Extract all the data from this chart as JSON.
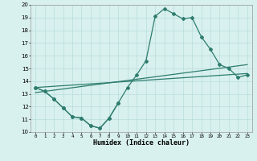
{
  "line1_x": [
    0,
    1,
    2,
    3,
    4,
    5,
    6,
    7,
    8,
    9,
    10,
    11,
    12,
    13,
    14,
    15,
    16,
    17,
    18,
    19,
    20,
    21,
    22,
    23
  ],
  "line1_y": [
    13.5,
    13.2,
    12.6,
    11.9,
    11.2,
    11.1,
    10.5,
    10.3,
    11.1,
    12.3,
    13.5,
    14.5,
    15.6,
    19.1,
    19.7,
    19.3,
    18.9,
    19.0,
    17.5,
    16.5,
    15.3,
    15.0,
    14.3,
    14.5
  ],
  "line2_x": [
    0,
    1,
    2,
    3,
    4,
    5,
    6,
    7,
    8,
    9
  ],
  "line2_y": [
    13.5,
    13.2,
    12.6,
    11.9,
    11.2,
    11.1,
    10.5,
    10.3,
    11.1,
    12.3
  ],
  "line3_x": [
    0,
    23
  ],
  "line3_y": [
    13.1,
    15.3
  ],
  "line4_x": [
    0,
    23
  ],
  "line4_y": [
    13.5,
    14.6
  ],
  "color": "#2e7d6e",
  "bg_color": "#d8f0ee",
  "grid_color": "#b8dedd",
  "xlabel": "Humidex (Indice chaleur)",
  "xlim": [
    -0.5,
    23.5
  ],
  "ylim": [
    10,
    20
  ],
  "yticks": [
    10,
    11,
    12,
    13,
    14,
    15,
    16,
    17,
    18,
    19,
    20
  ],
  "xticks": [
    0,
    1,
    2,
    3,
    4,
    5,
    6,
    7,
    8,
    9,
    10,
    11,
    12,
    13,
    14,
    15,
    16,
    17,
    18,
    19,
    20,
    21,
    22,
    23
  ]
}
